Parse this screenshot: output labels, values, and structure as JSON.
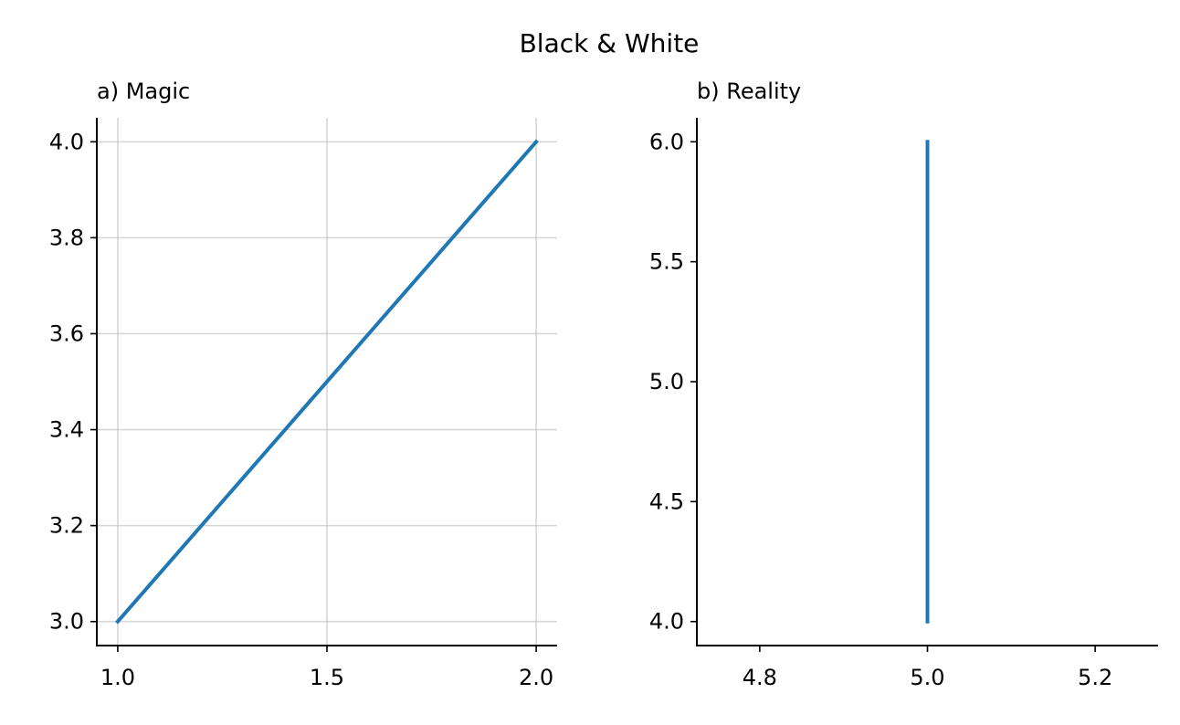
{
  "figure": {
    "title": "Black & White"
  },
  "colors": {
    "line": "#1f77b4",
    "grid": "#b0b0b0",
    "axis": "#000000"
  },
  "chart_data": [
    {
      "type": "line",
      "title": "a) Magic",
      "grid": true,
      "xlim": [
        0.95,
        2.05
      ],
      "ylim": [
        2.95,
        4.05
      ],
      "xticks": [
        1.0,
        1.5,
        2.0
      ],
      "xtick_labels": [
        "1.0",
        "1.5",
        "2.0"
      ],
      "yticks": [
        3.0,
        3.2,
        3.4,
        3.6,
        3.8,
        4.0
      ],
      "ytick_labels": [
        "3.0",
        "3.2",
        "3.4",
        "3.6",
        "3.8",
        "4.0"
      ],
      "series": [
        {
          "x": [
            1,
            2
          ],
          "y": [
            3,
            4
          ]
        }
      ]
    },
    {
      "type": "line",
      "title": "b) Reality",
      "grid": false,
      "xlim": [
        4.725,
        5.275
      ],
      "ylim": [
        3.9,
        6.1
      ],
      "xticks": [
        4.8,
        5.0,
        5.2
      ],
      "xtick_labels": [
        "4.8",
        "5.0",
        "5.2"
      ],
      "yticks": [
        4.0,
        4.5,
        5.0,
        5.5,
        6.0
      ],
      "ytick_labels": [
        "4.0",
        "4.5",
        "5.0",
        "5.5",
        "6.0"
      ],
      "series": [
        {
          "x": [
            5,
            5
          ],
          "y": [
            4,
            6
          ]
        }
      ]
    }
  ]
}
